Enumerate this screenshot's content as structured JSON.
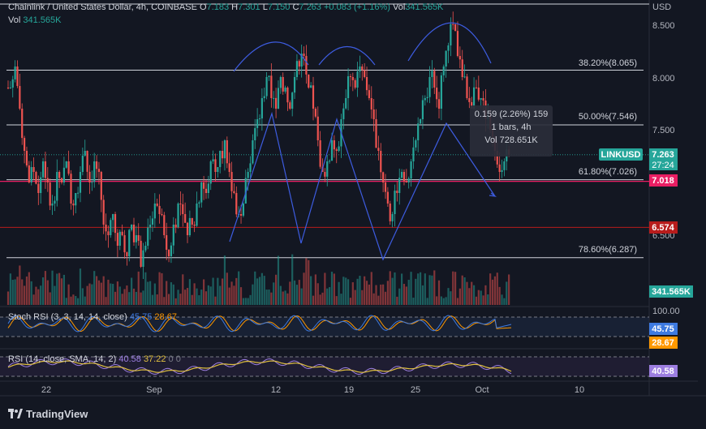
{
  "header": {
    "symbol": "Chainlink / United States Dollar, 4h, COINBASE",
    "o_label": "O",
    "o": "7.183",
    "h_label": "H",
    "h": "7.301",
    "l_label": "L",
    "l": "7.150",
    "c_label": "C",
    "c": "7.263",
    "change": "+0.083 (+1.16%)",
    "vol_label": "Vol",
    "vol": "341.565K"
  },
  "volume_header": {
    "label": "Vol",
    "value": "341.565K"
  },
  "price_axis": {
    "unit": "USD",
    "ticks": [
      "8.500",
      "8.000",
      "7.500",
      "6.500"
    ]
  },
  "fib_levels": [
    {
      "label": "38.20%(8.065)",
      "price": 8.065
    },
    {
      "label": "50.00%(7.546)",
      "price": 7.546
    },
    {
      "label": "61.80%(7.026)",
      "price": 7.026
    },
    {
      "label": "78.60%(6.287)",
      "price": 6.287
    }
  ],
  "price_badges": {
    "symbol": "LINKUSD",
    "last": "7.263",
    "countdown": "27:24",
    "level1": "7.018",
    "level2": "6.574",
    "volume": "341.565K"
  },
  "tooltip": {
    "line1": "0.159 (2.26%) 159",
    "line2": "1 bars, 4h",
    "line3": "Vol 728.651K"
  },
  "stoch_rsi": {
    "title": "Stoch RSI (3, 3, 14, 14, close)",
    "k": "45.75",
    "d": "28.67",
    "axis_top": "100.00",
    "k_color": "#3d7ae0",
    "d_color": "#ff9800"
  },
  "rsi": {
    "title": "RSI (14, close, SMA, 14, 2)",
    "rsi": "40.58",
    "sma": "37.22",
    "extra": "0",
    "extra2": "0",
    "rsi_color": "#9c7ee0",
    "sma_color": "#e0c040"
  },
  "time_axis": [
    "22",
    "Sep",
    "12",
    "19",
    "25",
    "Oct",
    "10"
  ],
  "footer": {
    "brand": "TradingView"
  },
  "colors": {
    "up": "#26a69a",
    "down": "#ef5350",
    "pattern": "#3d5ce0",
    "bg": "#131722"
  },
  "chart_data": {
    "type": "candlestick",
    "symbol": "LINKUSD",
    "timeframe": "4h",
    "ylim": [
      5.8,
      8.7
    ],
    "close_path": [
      7.9,
      8.1,
      7.7,
      7.3,
      7.0,
      7.1,
      6.9,
      7.2,
      7.0,
      6.8,
      7.1,
      7.0,
      7.2,
      6.8,
      6.9,
      7.1,
      7.3,
      7.0,
      7.2,
      7.1,
      6.6,
      6.5,
      6.7,
      6.4,
      6.5,
      6.3,
      6.6,
      6.5,
      6.2,
      6.4,
      6.6,
      6.8,
      6.7,
      6.5,
      6.3,
      6.6,
      6.8,
      6.7,
      6.5,
      6.6,
      6.8,
      7.0,
      6.9,
      7.2,
      7.1,
      7.3,
      7.4,
      7.1,
      6.9,
      6.7,
      6.8,
      7.1,
      7.4,
      7.6,
      7.8,
      8.0,
      7.8,
      7.7,
      8.0,
      7.9,
      7.7,
      8.0,
      8.1,
      8.2,
      7.9,
      7.7,
      7.4,
      7.1,
      7.2,
      7.4,
      7.3,
      7.6,
      7.8,
      8.0,
      7.9,
      8.1,
      8.0,
      7.8,
      7.6,
      7.3,
      7.0,
      6.8,
      6.7,
      6.9,
      7.1,
      7.0,
      7.2,
      7.4,
      7.6,
      7.8,
      8.0,
      7.9,
      7.7,
      8.1,
      8.3,
      8.5,
      8.2,
      8.0,
      7.8,
      7.7,
      7.9,
      7.8,
      7.6,
      7.5,
      7.3,
      7.1,
      7.2,
      7.263
    ],
    "volume_max": "relative"
  }
}
